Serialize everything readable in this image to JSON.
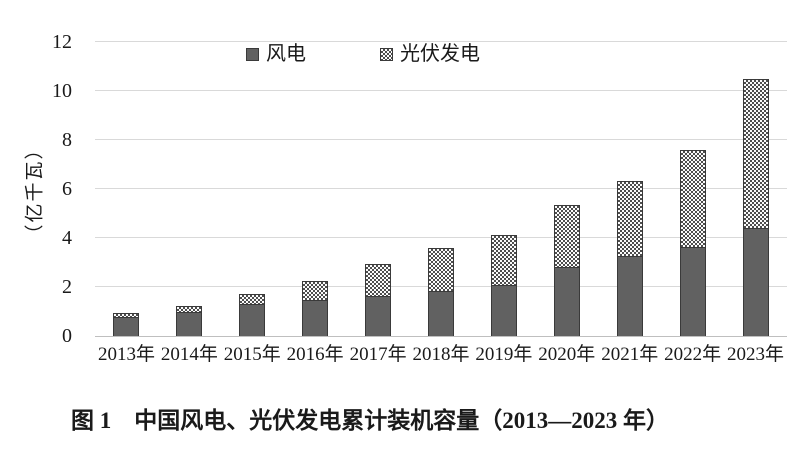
{
  "figure": {
    "caption": "图 1　中国风电、光伏发电累计装机容量（2013—2023 年）"
  },
  "y_axis": {
    "title": "（亿千瓦）",
    "tick_labels": [
      "0",
      "2",
      "4",
      "6",
      "8",
      "10",
      "12"
    ]
  },
  "legend": {
    "items": [
      {
        "label": "风电",
        "swatch": "solid-dark-square"
      },
      {
        "label": "光伏发电",
        "swatch": "checker-pattern-square"
      }
    ]
  },
  "chart_data": {
    "type": "bar",
    "stacked": true,
    "title": "图 1　中国风电、光伏发电累计装机容量（2013—2023 年）",
    "xlabel": "",
    "ylabel": "（亿千瓦）",
    "ylim": [
      0,
      12
    ],
    "yticks": [
      0,
      2,
      4,
      6,
      8,
      10,
      12
    ],
    "grid": true,
    "legend_position": "top-center",
    "categories": [
      "2013年",
      "2014年",
      "2015年",
      "2016年",
      "2017年",
      "2018年",
      "2019年",
      "2020年",
      "2021年",
      "2022年",
      "2023年"
    ],
    "series": [
      {
        "name": "风电",
        "style": "solid-dark",
        "values": [
          0.77,
          0.96,
          1.29,
          1.49,
          1.64,
          1.84,
          2.1,
          2.81,
          3.28,
          3.65,
          4.41
        ]
      },
      {
        "name": "光伏发电",
        "style": "checker-pattern",
        "values": [
          0.19,
          0.28,
          0.43,
          0.77,
          1.3,
          1.74,
          2.04,
          2.53,
          3.06,
          3.93,
          6.09
        ]
      }
    ],
    "totals": [
      0.96,
      1.24,
      1.72,
      2.26,
      2.94,
      3.58,
      4.14,
      5.34,
      6.34,
      7.58,
      10.5
    ]
  },
  "colors": {
    "wind_fill": "#616161",
    "bar_border": "#3a3a3a",
    "pattern_dot": "#4d4d4d",
    "pattern_bg": "#fbfbfb",
    "gridline": "#d9d9d9",
    "axis_line": "#bfbfbf",
    "text": "#1a1a1a",
    "background": "#ffffff"
  }
}
